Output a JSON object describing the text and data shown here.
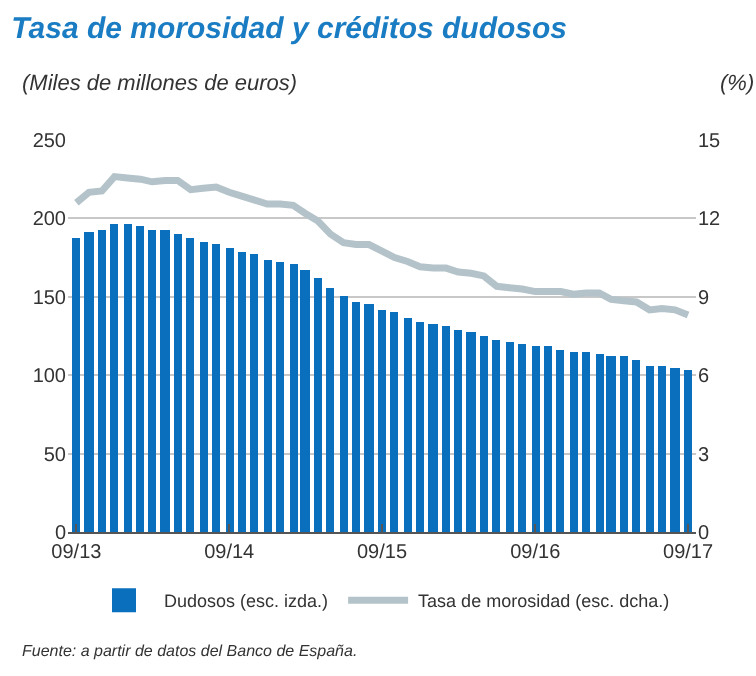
{
  "chart_data": {
    "type": "bar",
    "title": "Tasa de morosidad y créditos dudosos",
    "ylabel": "(Miles de millones de euros)",
    "y2label": "(%)",
    "x": [
      "2013-09",
      "2013-10",
      "2013-11",
      "2013-12",
      "2014-01",
      "2014-02",
      "2014-03",
      "2014-04",
      "2014-05",
      "2014-06",
      "2014-07",
      "2014-08",
      "2014-09",
      "2014-10",
      "2014-11",
      "2014-12",
      "2015-01",
      "2015-02",
      "2015-03",
      "2015-04",
      "2015-05",
      "2015-06",
      "2015-07",
      "2015-08",
      "2015-09",
      "2015-10",
      "2015-11",
      "2015-12",
      "2016-01",
      "2016-02",
      "2016-03",
      "2016-04",
      "2016-05",
      "2016-06",
      "2016-07",
      "2016-08",
      "2016-09",
      "2016-10",
      "2016-11",
      "2016-12",
      "2017-01",
      "2017-02",
      "2017-03",
      "2017-04",
      "2017-05",
      "2017-06",
      "2017-07",
      "2017-08",
      "2017-09"
    ],
    "series": [
      {
        "name": "Dudosos (esc. izda.)",
        "color": "#0a6fbd",
        "values": [
          188,
          191,
          193,
          197,
          197,
          195,
          193,
          192,
          190,
          187,
          185,
          184,
          181,
          179,
          177,
          173,
          172,
          171,
          167,
          162,
          155,
          150,
          147,
          145,
          142,
          140,
          137,
          134,
          133,
          132,
          129,
          127,
          125,
          122,
          121,
          120,
          118,
          118,
          116,
          115,
          115,
          113,
          112,
          112,
          110,
          106,
          106,
          105,
          103
        ]
      },
      {
        "name": "Tasa de morosidad (esc. dcha.)",
        "type": "line",
        "axis": "y2",
        "color": "#b4c3c9",
        "values": [
          12.6,
          13.0,
          13.05,
          13.6,
          13.55,
          13.5,
          13.4,
          13.45,
          13.45,
          13.1,
          13.15,
          13.2,
          13.0,
          12.85,
          12.7,
          12.55,
          12.55,
          12.5,
          12.2,
          11.9,
          11.4,
          11.07,
          11.0,
          11.0,
          10.75,
          10.5,
          10.35,
          10.15,
          10.1,
          10.1,
          9.95,
          9.9,
          9.8,
          9.4,
          9.35,
          9.3,
          9.2,
          9.2,
          9.2,
          9.1,
          9.15,
          9.15,
          8.9,
          8.85,
          8.8,
          8.5,
          8.55,
          8.5,
          8.3
        ]
      }
    ],
    "xlim": [
      "2013-08-12",
      "2017-09-20"
    ],
    "xticks": [
      {
        "value": "2013-09",
        "label": "09/13"
      },
      {
        "value": "2014-09",
        "label": "09/14"
      },
      {
        "value": "2015-09",
        "label": "09/15"
      },
      {
        "value": "2016-09",
        "label": "09/16"
      },
      {
        "value": "2017-09",
        "label": "09/17"
      }
    ],
    "ylim": [
      0,
      250
    ],
    "yticks": [
      0,
      50,
      100,
      150,
      200,
      250
    ],
    "y2lim": [
      0,
      15
    ],
    "y2ticks": [
      0,
      3,
      6,
      9,
      12,
      15
    ],
    "grid": "y",
    "legend": "bottom",
    "marker": "none",
    "line_style": "solid",
    "annotations": [
      "Fuente: a partir de datos del Banco de España."
    ]
  }
}
